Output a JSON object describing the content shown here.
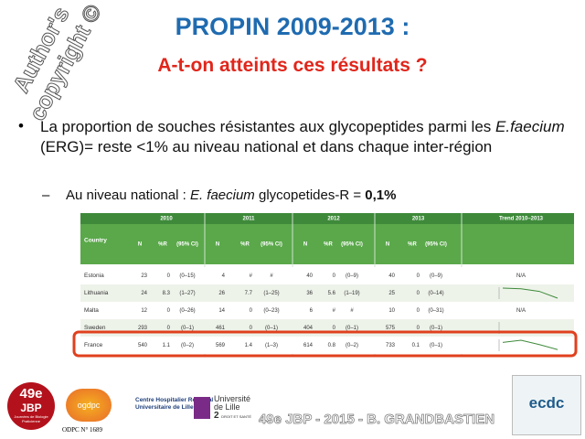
{
  "watermark": [
    "Author's",
    "copyright ©"
  ],
  "title": "PROPIN 2009-2013 :",
  "subtitle": "A-t-on atteints ces résultats ?",
  "bullet": {
    "text1": "La proportion de souches résistantes aux glycopeptides parmi les ",
    "italic": "E.faecium",
    "text2": "  (ERG)= reste <1% au niveau national et dans chaque inter-région"
  },
  "subbullet": {
    "text1": "Au niveau national : ",
    "italic": "E. faecium",
    "text2": " glycopetides-R = ",
    "bold": "0,1%"
  },
  "table": {
    "years": [
      "2010",
      "2011",
      "2012",
      "2013"
    ],
    "trend_header": "Trend 2010–2013",
    "country_header": "Country",
    "subheaders": [
      "N",
      "%R",
      "(95% CI)"
    ],
    "rows": [
      {
        "country": "Estonia",
        "cells": [
          23,
          0,
          "(0–15)",
          4,
          "#",
          "#",
          40,
          0,
          "(0–9)",
          40,
          0,
          "(0–9)"
        ],
        "trend": "N/A"
      },
      {
        "country": "Lithuania",
        "cells": [
          24,
          8.3,
          "(1–27)",
          26,
          7.7,
          "(1–25)",
          36,
          5.6,
          "(1–19)",
          25,
          0,
          "(0–14)"
        ]
      },
      {
        "country": "Malta",
        "cells": [
          12,
          0,
          "(0–26)",
          14,
          0,
          "(0–23)",
          6,
          "#",
          "#",
          10,
          0,
          "(0–31)"
        ],
        "trend": "N/A"
      },
      {
        "country": "Sweden",
        "cells": [
          293,
          0,
          "(0–1)",
          461,
          0,
          "(0–1)",
          404,
          0,
          "(0–1)",
          575,
          0,
          "(0–1)"
        ]
      },
      {
        "country": "France",
        "cells": [
          540,
          1.1,
          "(0–2)",
          569,
          1.4,
          "(1–3)",
          614,
          0.8,
          "(0–2)",
          733,
          0.1,
          "(0–1)"
        ]
      }
    ]
  },
  "logos": {
    "jbp_num": "49e",
    "jbp": "JBP",
    "jbp_sub": "Journées de Biologie Praticienne",
    "ogdpc": "ogdpc",
    "chru1": "Centre Hospitalier Régional",
    "chru2": "Universitaire de Lille",
    "univ1": "Université",
    "univ2": "de Lille",
    "univ3": "2",
    "univ4": "DROIT ET SANTÉ",
    "odpc": "ODPC N° 1689",
    "ecdc": "ecdc"
  },
  "footer": "49e JBP - 2015 - B. GRANDBASTIEN"
}
